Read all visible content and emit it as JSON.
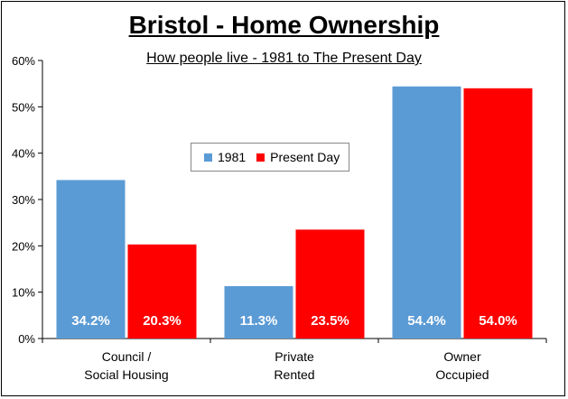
{
  "chart_data": {
    "type": "bar",
    "title": "Bristol - Home Ownership",
    "subtitle": "How people live - 1981 to The Present Day",
    "categories": [
      [
        "Council /",
        "Social Housing"
      ],
      [
        "Private",
        "Rented"
      ],
      [
        "Owner",
        "Occupied"
      ]
    ],
    "series": [
      {
        "name": "1981",
        "color": "#5b9bd5",
        "values": [
          34.2,
          11.3,
          54.4
        ],
        "labels": [
          "34.2%",
          "11.3%",
          "54.4%"
        ]
      },
      {
        "name": "Present Day",
        "color": "#ff0000",
        "values": [
          20.3,
          23.5,
          54.0
        ],
        "labels": [
          "20.3%",
          "23.5%",
          "54.0%"
        ]
      }
    ],
    "ylim": [
      0,
      60
    ],
    "yticks": [
      "0%",
      "10%",
      "20%",
      "30%",
      "40%",
      "50%",
      "60%"
    ],
    "ytick_values": [
      0,
      10,
      20,
      30,
      40,
      50,
      60
    ],
    "grid": false,
    "legend_position": "center",
    "data_label_color": "#ffffff"
  }
}
